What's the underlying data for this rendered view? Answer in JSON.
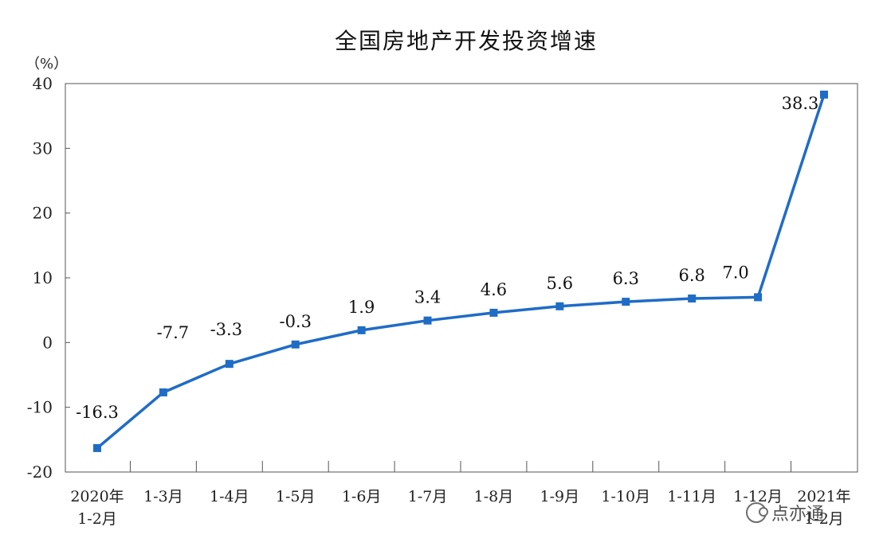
{
  "chart_data": {
    "type": "line",
    "title": "全国房地产开发投资增速",
    "unit_label": "（%）",
    "categories": [
      [
        "2020年",
        "1-2月"
      ],
      [
        "1-3月"
      ],
      [
        "1-4月"
      ],
      [
        "1-5月"
      ],
      [
        "1-6月"
      ],
      [
        "1-7月"
      ],
      [
        "1-8月"
      ],
      [
        "1-9月"
      ],
      [
        "1-10月"
      ],
      [
        "1-11月"
      ],
      [
        "1-12月"
      ],
      [
        "2021年",
        "1-2月"
      ]
    ],
    "values": [
      -16.3,
      -7.7,
      -3.3,
      -0.3,
      1.9,
      3.4,
      4.6,
      5.6,
      6.3,
      6.8,
      7.0,
      38.3
    ],
    "data_labels": [
      "-16.3",
      "-7.7",
      "-3.3",
      "-0.3",
      "1.9",
      "3.4",
      "4.6",
      "5.6",
      "6.3",
      "6.8",
      "7.0",
      "38.3"
    ],
    "yticks": [
      -20,
      -10,
      0,
      10,
      20,
      30,
      40
    ],
    "ylim": [
      -20,
      40
    ],
    "grid": false,
    "line_color": "#1f6cc7"
  },
  "watermark": {
    "icon": "wechat-icon",
    "text": "点亦通"
  }
}
